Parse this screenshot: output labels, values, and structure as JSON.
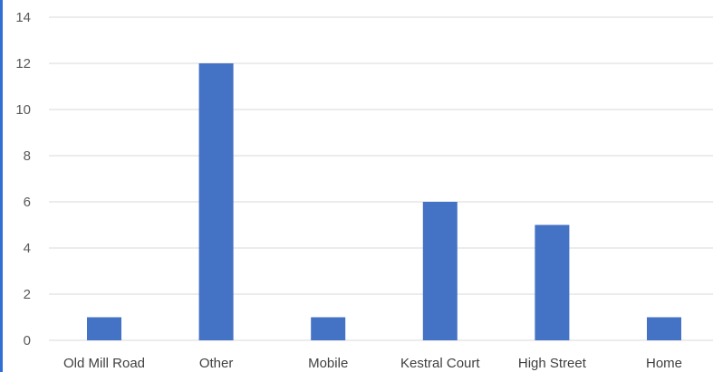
{
  "chart_data": {
    "type": "bar",
    "title": "",
    "xlabel": "",
    "ylabel": "",
    "categories": [
      "Old Mill Road",
      "Other",
      "Mobile",
      "Kestral Court",
      "High Street",
      "Home"
    ],
    "values": [
      1,
      12,
      1,
      6,
      5,
      1
    ],
    "ylim": [
      0,
      14
    ],
    "yticks": [
      0,
      2,
      4,
      6,
      8,
      10,
      12,
      14
    ],
    "grid": true,
    "bar_color": "#4472c4",
    "grid_color": "#d9d9d9",
    "legend": "none"
  },
  "frame": {
    "accent_border_color": "#2f6fd6"
  }
}
